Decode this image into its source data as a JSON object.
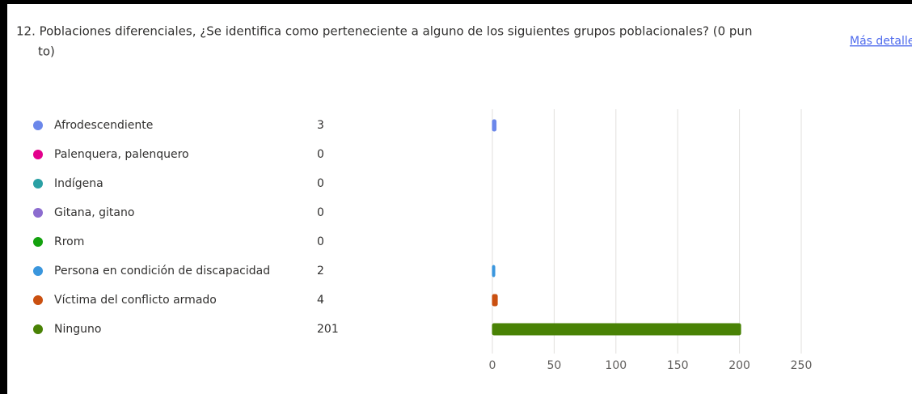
{
  "question": {
    "title_lines": [
      "12. Poblaciones diferenciales, ¿Se identifica como perteneciente a alguno de los siguientes grupos poblacionales? (0 pun",
      "to)"
    ],
    "link": "Más detalles"
  },
  "chart_data": {
    "type": "bar",
    "orientation": "horizontal",
    "categories": [
      "Afrodescendiente",
      "Palenquera, palenquero",
      "Indígena",
      "Gitana, gitano",
      "Rrom",
      "Persona en condición de discapacidad",
      "Víctima del conflicto armado",
      "Ninguno"
    ],
    "values": [
      3,
      0,
      0,
      0,
      0,
      2,
      4,
      201
    ],
    "colors": [
      "#6b87ea",
      "#e3008c",
      "#2aa0a4",
      "#8c6ccf",
      "#13a10e",
      "#3a96dd",
      "#ca5010",
      "#498205"
    ],
    "xlim": [
      0,
      250
    ],
    "xticks": [
      0,
      50,
      100,
      150,
      200,
      250
    ],
    "grid": true
  }
}
